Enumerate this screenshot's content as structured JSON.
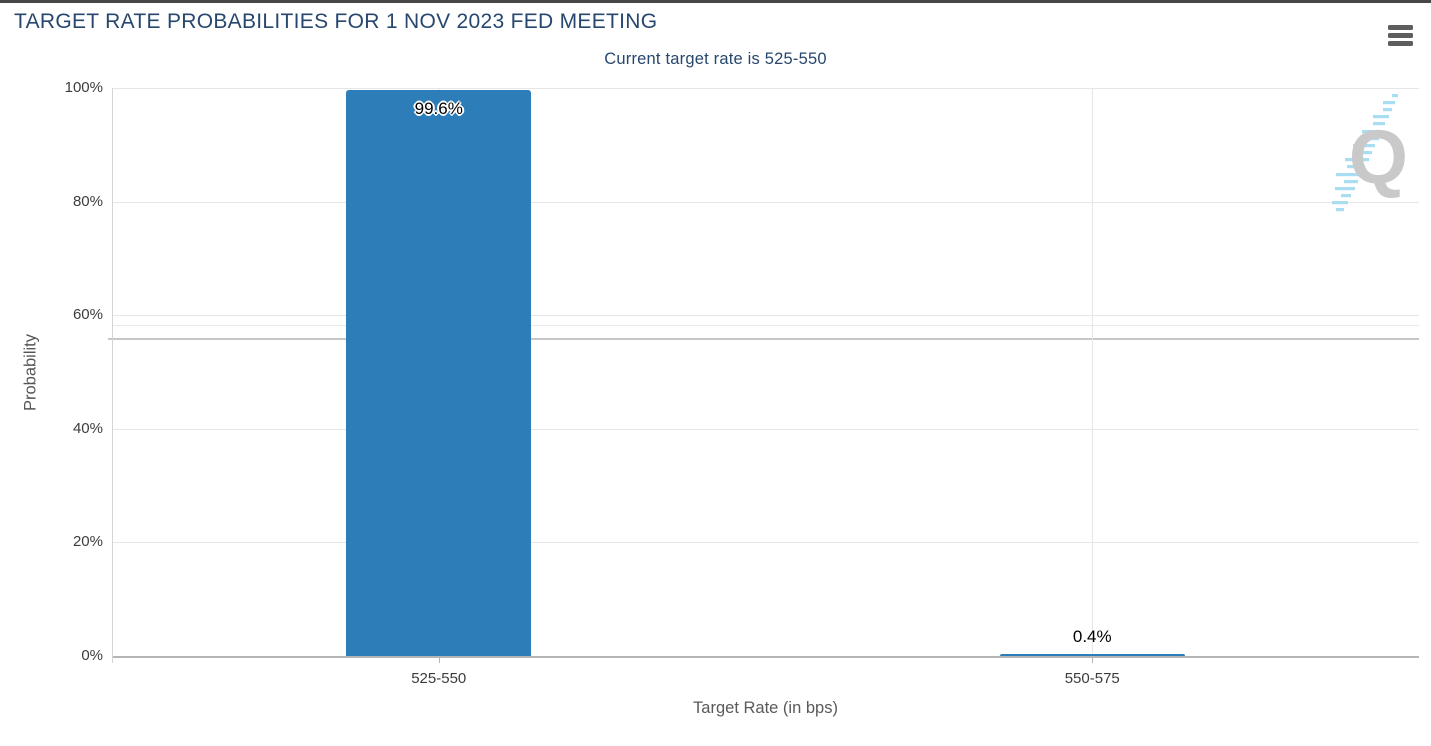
{
  "icons": {
    "menu": "hamburger-menu"
  },
  "colors": {
    "title_text": "#27476e",
    "bar": "#2c7db8",
    "gridline": "#e6e6e6",
    "axis_line": "#b5b5b5",
    "tick_text": "#3c3c3c",
    "axis_title_text": "#555555",
    "top_strip": "#474747",
    "menu_icon": "#5e5e5e",
    "watermark_q": "#c9c9c9",
    "watermark_dash": "#a8ddf2"
  },
  "chart_data": {
    "type": "bar",
    "title": "TARGET RATE PROBABILITIES FOR 1 NOV 2023 FED MEETING",
    "subtitle": "Current target rate is 525-550",
    "categories": [
      "525-550",
      "550-575"
    ],
    "series": [
      {
        "name": "Probability",
        "values": [
          99.6,
          0.4
        ]
      }
    ],
    "data_labels": [
      "99.6%",
      "0.4%"
    ],
    "xlabel": "Target Rate (in bps)",
    "ylabel": "Probability",
    "ylim": [
      0,
      100
    ],
    "yticks": [
      0,
      20,
      40,
      60,
      80,
      100
    ],
    "ytick_suffix": "%",
    "grid": true,
    "legend_position": "none",
    "bar_color": "#2c7db8"
  },
  "watermark": {
    "letter": "Q"
  }
}
